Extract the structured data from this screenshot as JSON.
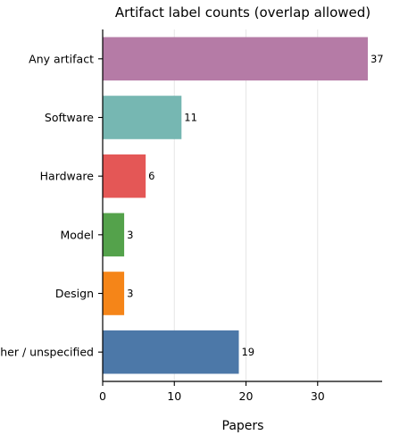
{
  "chart_data": {
    "type": "bar",
    "orientation": "horizontal",
    "title": "Artifact label counts (overlap allowed)",
    "xlabel": "Papers",
    "ylabel": "",
    "categories": [
      "Any artifact",
      "Software",
      "Hardware",
      "Model",
      "Design",
      "Other / unspecified"
    ],
    "values": [
      37,
      11,
      6,
      3,
      3,
      19
    ],
    "data_labels": [
      "37",
      "11",
      "6",
      "3",
      "3",
      "19"
    ],
    "colors": [
      "#b57ba6",
      "#76b7b2",
      "#e45756",
      "#54a24b",
      "#f58518",
      "#4c78a8"
    ],
    "xlim": [
      0,
      39
    ],
    "xticks": [
      0,
      10,
      20,
      30
    ],
    "xtick_labels": [
      "0",
      "10",
      "20",
      "30"
    ],
    "grid": "x",
    "legend": "none"
  }
}
